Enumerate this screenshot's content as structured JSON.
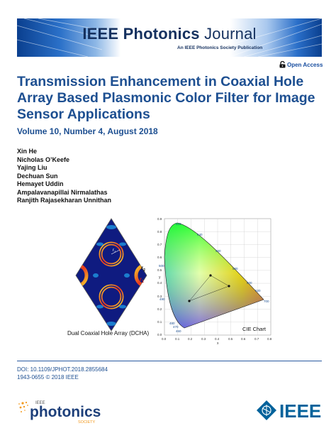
{
  "banner": {
    "journal_bold": "IEEE Photonics",
    "journal_light": "Journal",
    "subtitle": "An IEEE Photonics Society Publication"
  },
  "open_access": {
    "label": "Open Access",
    "icon": "open-lock-icon"
  },
  "paper": {
    "title": "Transmission Enhancement in Coaxial Hole Array Based Plasmonic Color Filter for Image Sensor Applications",
    "volume": "Volume 10, Number 4, August 2018"
  },
  "authors": [
    "Xin He",
    "Nicholas O’Keefe",
    "Yajing Liu",
    "Dechuan Sun",
    "Hemayet Uddin",
    "Ampalavanapillai Nirmalathas",
    "Ranjith Rajasekharan Unnithan"
  ],
  "figure": {
    "dcha_caption": "Dual Coaxial Hole Array (DCHA)",
    "labels": {
      "r2": "r",
      "r2_sub": "2",
      "r1": "r",
      "r1_sub": "1",
      "center_r1": "r",
      "center_r1_sub": "1"
    },
    "cie_label": "CIE Chart",
    "y_axis": "y",
    "x_axis": "x",
    "x_ticks": [
      "0.0",
      "0.1",
      "0.2",
      "0.3",
      "0.4",
      "0.5",
      "0.6",
      "0.7",
      "0.8"
    ],
    "y_ticks": [
      "0.0",
      "0.1",
      "0.2",
      "0.3",
      "0.4",
      "0.5",
      "0.6",
      "0.7",
      "0.8",
      "0.9"
    ],
    "wavelengths": [
      "520",
      "540",
      "560",
      "580",
      "600",
      "620",
      "700",
      "500",
      "490",
      "480",
      "470",
      "460"
    ]
  },
  "footer": {
    "doi": "DOI: 10.1109/JPHOT.2018.2855684",
    "issn": "1943-0655 © 2018 IEEE",
    "society_top": "IEEE",
    "society_main": "photonics",
    "society_bottom": "SOCIETY",
    "ieee": "IEEE"
  },
  "colors": {
    "title_blue": "#1d4f91",
    "ieee_blue": "#00629b",
    "society_orange": "#f29a1f"
  }
}
